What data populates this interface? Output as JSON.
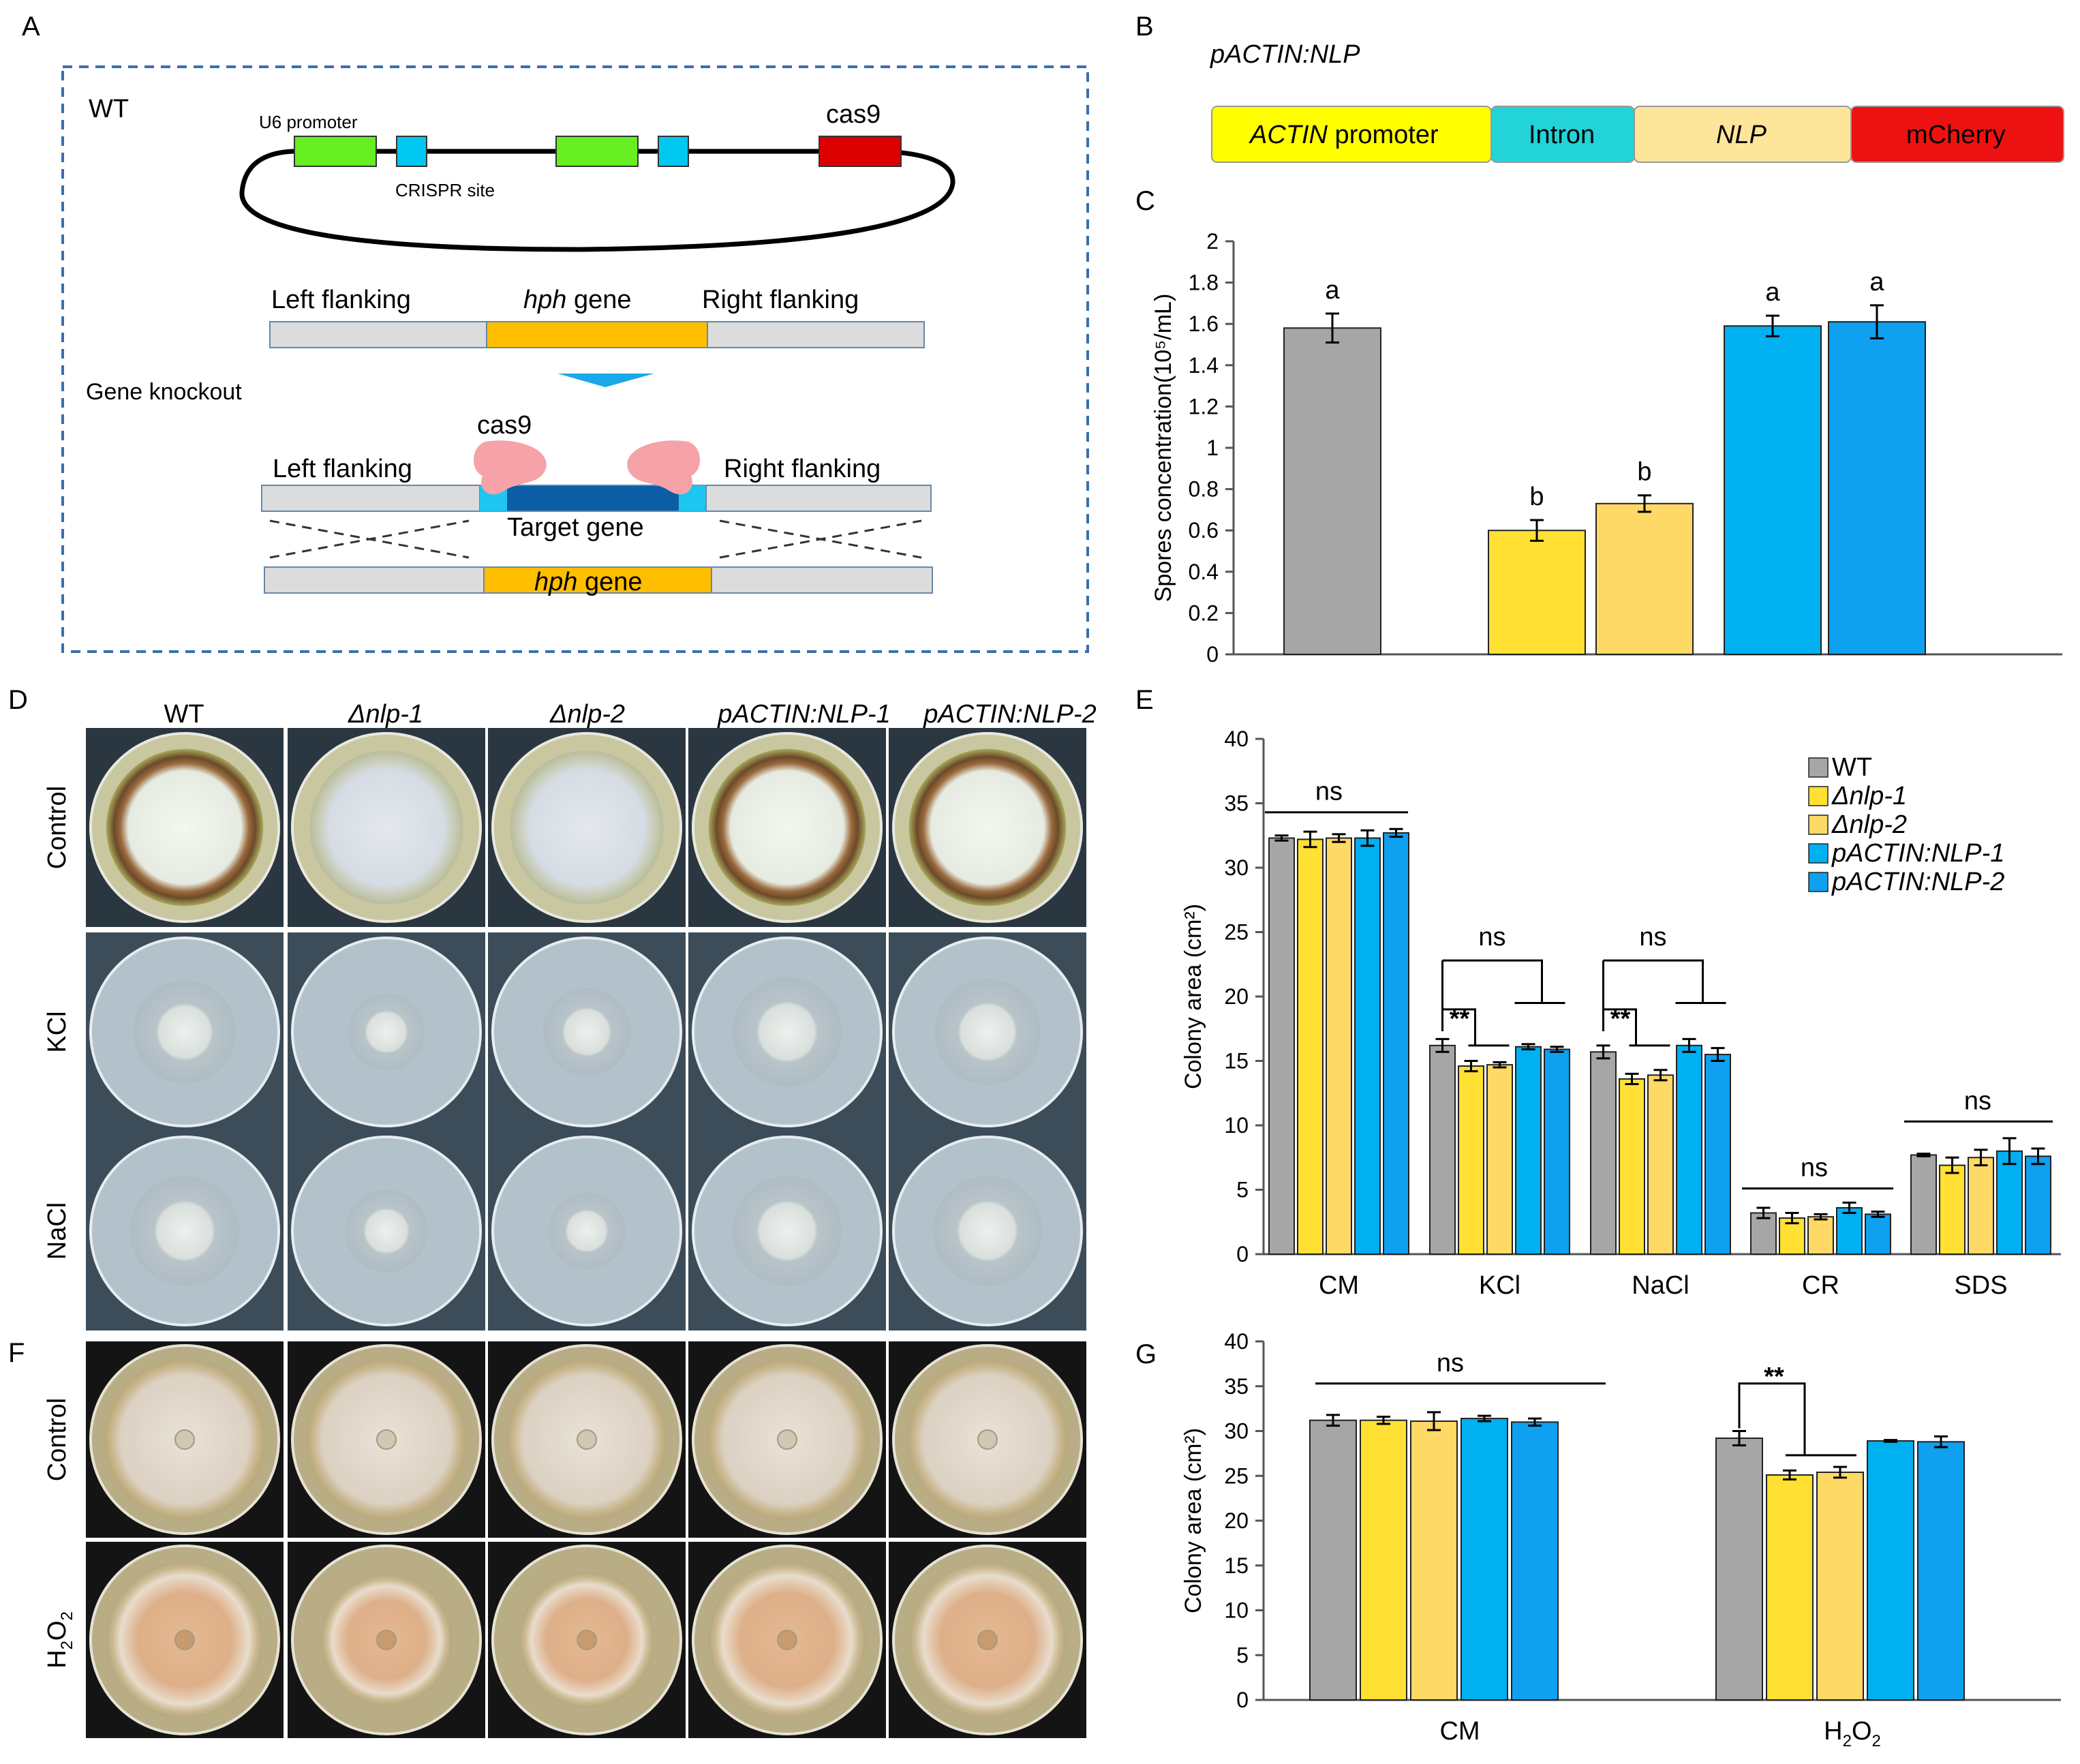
{
  "panels": {
    "A": "A",
    "B": "B",
    "C": "C",
    "D": "D",
    "E": "E",
    "F": "F",
    "G": "G"
  },
  "panel_a": {
    "wt_label": "WT",
    "u6_promoter": "U6 promoter",
    "crispr_site": "CRISPR site",
    "cas9_top": "cas9",
    "left_flanking_1": "Left flanking",
    "hph_italic": "hph",
    "gene_word": " gene",
    "right_flanking_1": "Right flanking",
    "gene_knockout": "Gene knockout",
    "cas9_mid": "cas9",
    "left_flanking_2": "Left flanking",
    "right_flanking_2": "Right flanking",
    "target_gene": "Target gene"
  },
  "panel_b": {
    "title": "pACTIN:NLP",
    "actin_italic": "ACTIN",
    "promoter_word": " promoter",
    "intron": "Intron",
    "nlp": "NLP",
    "mcherry": "mCherry",
    "colors": {
      "promoter": "#ffff00",
      "intron": "#22d3d8",
      "nlp": "#fde59a",
      "mcherry": "#ee1111"
    }
  },
  "panel_d": {
    "columns": [
      "WT",
      "Δnlp-1",
      "Δnlp-2",
      "pACTIN:NLP-1",
      "pACTIN:NLP-2"
    ],
    "rows": [
      "Control",
      "KCl",
      "NaCl"
    ]
  },
  "panel_f": {
    "rows": [
      "Control",
      "H2O2"
    ]
  },
  "legend": [
    "WT",
    "Δnlp-1",
    "Δnlp-2",
    "pACTIN:NLP-1",
    "pACTIN:NLP-2"
  ],
  "chart_data": [
    {
      "id": "C",
      "type": "bar",
      "ylabel": "Spores concentration(10⁵/mL)",
      "ylim": [
        0,
        2
      ],
      "yticks": [
        0,
        0.2,
        0.4,
        0.6,
        0.8,
        1,
        1.2,
        1.4,
        1.6,
        1.8,
        2
      ],
      "series": [
        "WT",
        "Δnlp-1",
        "Δnlp-2",
        "pACTIN:NLP-1",
        "pACTIN:NLP-2"
      ],
      "values": [
        1.58,
        0.6,
        0.73,
        1.59,
        1.61
      ],
      "errors": [
        0.07,
        0.05,
        0.04,
        0.05,
        0.08
      ],
      "letters": [
        "a",
        "b",
        "b",
        "a",
        "a"
      ],
      "colors": [
        "#a6a6a6",
        "#ffe033",
        "#ffd966",
        "#00b0f0",
        "#0fa0f0"
      ]
    },
    {
      "id": "E",
      "type": "bar",
      "ylabel": "Colony area (cm²)",
      "ylim": [
        0,
        40
      ],
      "yticks": [
        0,
        5,
        10,
        15,
        20,
        25,
        30,
        35,
        40
      ],
      "categories": [
        "CM",
        "KCl",
        "NaCl",
        "CR",
        "SDS"
      ],
      "series": [
        {
          "name": "WT",
          "values": [
            32.3,
            16.2,
            15.7,
            3.2,
            7.7
          ],
          "errors": [
            0.2,
            0.5,
            0.5,
            0.4,
            0.1
          ]
        },
        {
          "name": "Δnlp-1",
          "values": [
            32.2,
            14.6,
            13.6,
            2.8,
            6.9
          ],
          "errors": [
            0.6,
            0.4,
            0.4,
            0.4,
            0.6
          ]
        },
        {
          "name": "Δnlp-2",
          "values": [
            32.3,
            14.7,
            13.9,
            2.9,
            7.5
          ],
          "errors": [
            0.3,
            0.2,
            0.4,
            0.2,
            0.6
          ]
        },
        {
          "name": "pACTIN:NLP-1",
          "values": [
            32.3,
            16.1,
            16.2,
            3.6,
            8.0
          ],
          "errors": [
            0.6,
            0.2,
            0.5,
            0.4,
            1.0
          ]
        },
        {
          "name": "pACTIN:NLP-2",
          "values": [
            32.7,
            15.9,
            15.5,
            3.1,
            7.6
          ],
          "errors": [
            0.3,
            0.2,
            0.5,
            0.2,
            0.6
          ]
        }
      ],
      "colors": [
        "#a6a6a6",
        "#ffe033",
        "#ffd966",
        "#00b0f0",
        "#0fa0f0"
      ],
      "annotations": [
        "ns",
        "ns",
        "**",
        "ns",
        "**",
        "ns",
        "ns"
      ]
    },
    {
      "id": "G",
      "type": "bar",
      "ylabel": "Colony area (cm²)",
      "ylim": [
        0,
        40
      ],
      "yticks": [
        0,
        5,
        10,
        15,
        20,
        25,
        30,
        35,
        40
      ],
      "categories": [
        "CM",
        "H2O2"
      ],
      "series": [
        {
          "name": "WT",
          "values": [
            31.2,
            29.2
          ],
          "errors": [
            0.6,
            0.8
          ]
        },
        {
          "name": "Δnlp-1",
          "values": [
            31.2,
            25.1
          ],
          "errors": [
            0.4,
            0.5
          ]
        },
        {
          "name": "Δnlp-2",
          "values": [
            31.1,
            25.4
          ],
          "errors": [
            1.0,
            0.6
          ]
        },
        {
          "name": "pACTIN:NLP-1",
          "values": [
            31.4,
            28.9
          ],
          "errors": [
            0.3,
            0.1
          ]
        },
        {
          "name": "pACTIN:NLP-2",
          "values": [
            31.0,
            28.8
          ],
          "errors": [
            0.4,
            0.6
          ]
        }
      ],
      "colors": [
        "#a6a6a6",
        "#ffe033",
        "#ffd966",
        "#00b0f0",
        "#0fa0f0"
      ],
      "annotations": [
        "ns",
        "**"
      ]
    }
  ]
}
